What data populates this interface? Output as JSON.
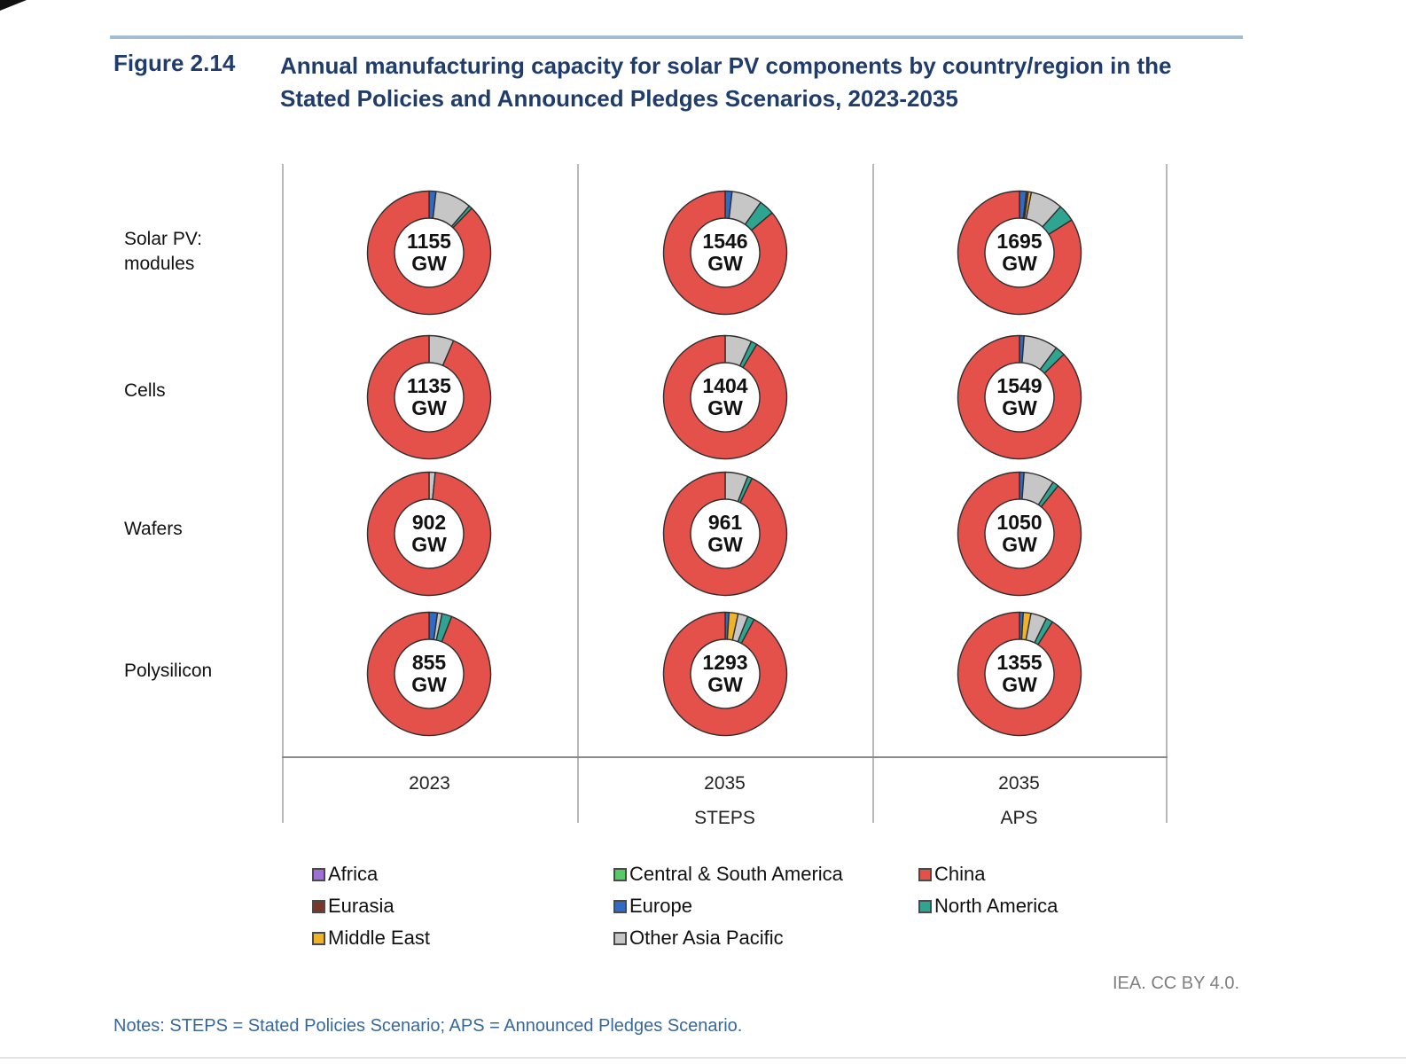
{
  "figure": {
    "label": "Figure 2.14",
    "title": "Annual manufacturing capacity for solar PV components by country/region in the Stated Policies and Announced Pledges Scenarios, 2023-2035",
    "credit": "IEA. CC BY 4.0.",
    "notes": "Notes: STEPS = Stated Policies Scenario; APS = Announced Pledges Scenario."
  },
  "chart_data": {
    "type": "pie",
    "subtype": "donut-grid",
    "unit": "GW",
    "columns": [
      {
        "line1": "2023",
        "line2": ""
      },
      {
        "line1": "2035",
        "line2": "STEPS"
      },
      {
        "line1": "2035",
        "line2": "APS"
      }
    ],
    "colors": {
      "Africa": "#9d71d4",
      "Central & South America": "#55cb63",
      "China": "#e4504a",
      "Eurasia": "#77382b",
      "Europe": "#2f6ac9",
      "Middle East": "#efb32a",
      "North America": "#2fa491",
      "Other Asia Pacific": "#c6c6c6"
    },
    "legend_columns": [
      [
        "Africa",
        "Eurasia",
        "Middle East"
      ],
      [
        "Central & South America",
        "Europe",
        "Other Asia Pacific"
      ],
      [
        "China",
        "North America"
      ]
    ],
    "rows": [
      {
        "label": "Solar PV: modules",
        "donuts": [
          {
            "value": "1155",
            "segments": [
              {
                "region": "Europe",
                "pct": 1.8
              },
              {
                "region": "Other Asia Pacific",
                "pct": 9.5
              },
              {
                "region": "North America",
                "pct": 0.9
              },
              {
                "region": "China",
                "pct": 87.8
              }
            ]
          },
          {
            "value": "1546",
            "segments": [
              {
                "region": "Europe",
                "pct": 1.8
              },
              {
                "region": "Other Asia Pacific",
                "pct": 8.0
              },
              {
                "region": "North America",
                "pct": 4.0
              },
              {
                "region": "China",
                "pct": 86.2
              }
            ]
          },
          {
            "value": "1695",
            "segments": [
              {
                "region": "Europe",
                "pct": 1.8
              },
              {
                "region": "Eurasia",
                "pct": 0.5
              },
              {
                "region": "Middle East",
                "pct": 0.8
              },
              {
                "region": "Other Asia Pacific",
                "pct": 8.5
              },
              {
                "region": "North America",
                "pct": 4.5
              },
              {
                "region": "China",
                "pct": 83.9
              }
            ]
          }
        ]
      },
      {
        "label": "Cells",
        "donuts": [
          {
            "value": "1135",
            "segments": [
              {
                "region": "Other Asia Pacific",
                "pct": 6.5
              },
              {
                "region": "China",
                "pct": 93.5
              }
            ]
          },
          {
            "value": "1404",
            "segments": [
              {
                "region": "Other Asia Pacific",
                "pct": 7.0
              },
              {
                "region": "North America",
                "pct": 1.6
              },
              {
                "region": "China",
                "pct": 91.4
              }
            ]
          },
          {
            "value": "1549",
            "segments": [
              {
                "region": "Europe",
                "pct": 1.2
              },
              {
                "region": "Other Asia Pacific",
                "pct": 9.0
              },
              {
                "region": "North America",
                "pct": 2.6
              },
              {
                "region": "China",
                "pct": 87.2
              }
            ]
          }
        ]
      },
      {
        "label": "Wafers",
        "donuts": [
          {
            "value": "902",
            "segments": [
              {
                "region": "Other Asia Pacific",
                "pct": 1.6
              },
              {
                "region": "China",
                "pct": 98.4
              }
            ]
          },
          {
            "value": "961",
            "segments": [
              {
                "region": "Other Asia Pacific",
                "pct": 6.0
              },
              {
                "region": "North America",
                "pct": 1.2
              },
              {
                "region": "China",
                "pct": 92.8
              }
            ]
          },
          {
            "value": "1050",
            "segments": [
              {
                "region": "Europe",
                "pct": 1.2
              },
              {
                "region": "Other Asia Pacific",
                "pct": 8.0
              },
              {
                "region": "North America",
                "pct": 1.6
              },
              {
                "region": "China",
                "pct": 89.2
              }
            ]
          }
        ]
      },
      {
        "label": "Polysilicon",
        "donuts": [
          {
            "value": "855",
            "segments": [
              {
                "region": "Europe",
                "pct": 2.2
              },
              {
                "region": "Other Asia Pacific",
                "pct": 1.2
              },
              {
                "region": "North America",
                "pct": 2.6
              },
              {
                "region": "China",
                "pct": 94.0
              }
            ]
          },
          {
            "value": "1293",
            "segments": [
              {
                "region": "Europe",
                "pct": 1.0
              },
              {
                "region": "Middle East",
                "pct": 2.4
              },
              {
                "region": "Other Asia Pacific",
                "pct": 2.6
              },
              {
                "region": "North America",
                "pct": 1.8
              },
              {
                "region": "China",
                "pct": 92.2
              }
            ]
          },
          {
            "value": "1355",
            "segments": [
              {
                "region": "Europe",
                "pct": 1.0
              },
              {
                "region": "Middle East",
                "pct": 2.0
              },
              {
                "region": "Other Asia Pacific",
                "pct": 4.2
              },
              {
                "region": "North America",
                "pct": 1.8
              },
              {
                "region": "China",
                "pct": 91.0
              }
            ]
          }
        ]
      }
    ]
  }
}
